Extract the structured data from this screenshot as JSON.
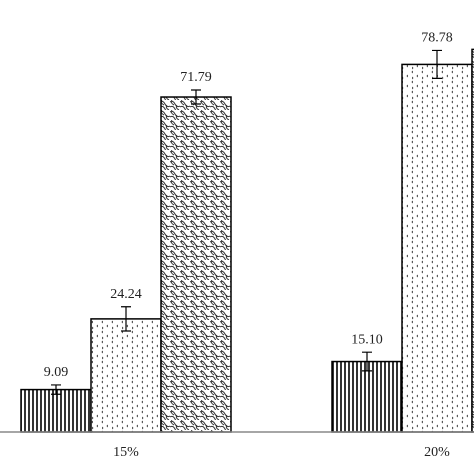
{
  "chart_data": {
    "type": "bar",
    "categories": [
      "15%",
      "20%"
    ],
    "series": [
      {
        "values": [
          9.09,
          15.1
        ],
        "value_labels": [
          "9.09",
          "15.10"
        ],
        "errors": [
          1.0,
          2.0
        ]
      },
      {
        "values": [
          24.24,
          78.78
        ],
        "value_labels": [
          "24.24",
          "78.78"
        ],
        "errors": [
          2.6,
          3.0
        ]
      },
      {
        "values": [
          71.79,
          82
        ],
        "value_labels": [
          "71.79",
          null
        ],
        "errors": [
          1.5,
          null
        ]
      }
    ]
  }
}
